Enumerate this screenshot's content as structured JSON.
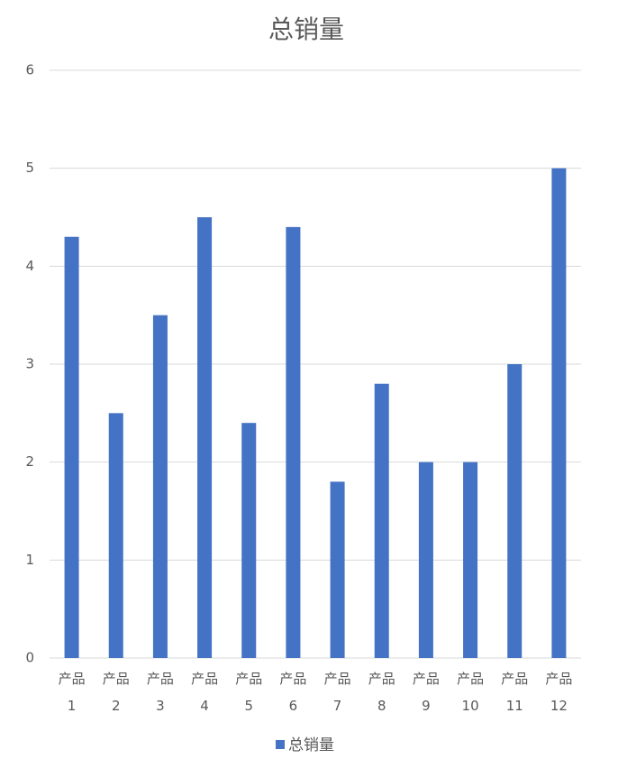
{
  "chart_data": {
    "type": "bar",
    "title": "总销量",
    "categories": [
      "产品1",
      "产品2",
      "产品3",
      "产品4",
      "产品5",
      "产品6",
      "产品7",
      "产品8",
      "产品9",
      "产品10",
      "产品11",
      "产品12"
    ],
    "series": [
      {
        "name": "总销量",
        "color": "#4472c4",
        "values": [
          4.3,
          2.5,
          3.5,
          4.5,
          2.4,
          4.4,
          1.8,
          2.8,
          2,
          2,
          3,
          5
        ]
      }
    ],
    "ylim": [
      0,
      6
    ],
    "yticks": [
      0,
      1,
      2,
      3,
      4,
      5,
      6
    ],
    "grid": true,
    "legend": "bottom"
  }
}
